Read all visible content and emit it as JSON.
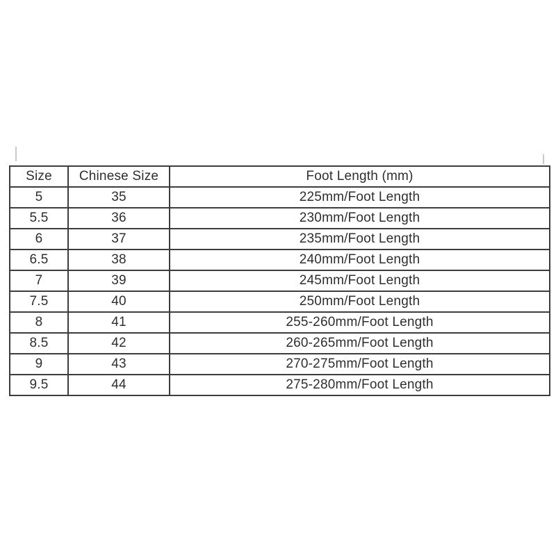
{
  "chart_data": {
    "type": "table",
    "columns": [
      "Size",
      "Chinese Size",
      "Foot Length (mm)"
    ],
    "rows": [
      [
        "5",
        "35",
        "225mm/Foot Length"
      ],
      [
        "5.5",
        "36",
        "230mm/Foot Length"
      ],
      [
        "6",
        "37",
        "235mm/Foot Length"
      ],
      [
        "6.5",
        "38",
        "240mm/Foot Length"
      ],
      [
        "7",
        "39",
        "245mm/Foot Length"
      ],
      [
        "7.5",
        "40",
        "250mm/Foot Length"
      ],
      [
        "8",
        "41",
        "255-260mm/Foot Length"
      ],
      [
        "8.5",
        "42",
        "260-265mm/Foot Length"
      ],
      [
        "9",
        "43",
        "270-275mm/Foot Length"
      ],
      [
        "9.5",
        "44",
        "275-280mm/Foot Length"
      ]
    ]
  },
  "colors": {
    "background": "#ffffff",
    "table_border": "#3c3c3c",
    "text": "#2e2e2e",
    "corner_mark": "#c9c9c9"
  }
}
